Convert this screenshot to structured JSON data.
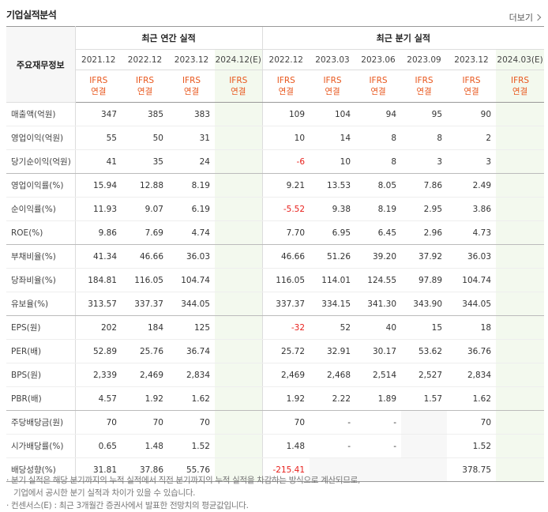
{
  "section_title": "기업실적분석",
  "more_label": "더보기",
  "row_header_label": "주요재무정보",
  "group_annual": "최근 연간 실적",
  "group_quarter": "최근 분기 실적",
  "annual_periods": [
    "2021.12",
    "2022.12",
    "2023.12",
    "2024.12(E)"
  ],
  "quarter_periods": [
    "2022.12",
    "2023.03",
    "2023.06",
    "2023.09",
    "2023.12",
    "2024.03(E)"
  ],
  "basis_top": "IFRS",
  "basis_bottom": "연결",
  "rows": [
    {
      "label": "매출액(억원)",
      "annual": [
        "347",
        "385",
        "383",
        ""
      ],
      "quarter": [
        "109",
        "104",
        "94",
        "95",
        "90",
        ""
      ]
    },
    {
      "label": "영업이익(억원)",
      "annual": [
        "55",
        "50",
        "31",
        ""
      ],
      "quarter": [
        "10",
        "14",
        "8",
        "8",
        "2",
        ""
      ]
    },
    {
      "label": "당기순이익(억원)",
      "annual": [
        "41",
        "35",
        "24",
        ""
      ],
      "quarter": [
        "-6",
        "10",
        "8",
        "3",
        "3",
        ""
      ]
    },
    {
      "label": "영업이익률(%)",
      "annual": [
        "15.94",
        "12.88",
        "8.19",
        ""
      ],
      "quarter": [
        "9.21",
        "13.53",
        "8.05",
        "7.86",
        "2.49",
        ""
      ]
    },
    {
      "label": "순이익률(%)",
      "annual": [
        "11.93",
        "9.07",
        "6.19",
        ""
      ],
      "quarter": [
        "-5.52",
        "9.38",
        "8.19",
        "2.95",
        "3.86",
        ""
      ]
    },
    {
      "label": "ROE(%)",
      "annual": [
        "9.86",
        "7.69",
        "4.74",
        ""
      ],
      "quarter": [
        "7.70",
        "6.95",
        "6.45",
        "2.96",
        "4.73",
        ""
      ]
    },
    {
      "label": "부채비율(%)",
      "annual": [
        "41.34",
        "46.66",
        "36.03",
        ""
      ],
      "quarter": [
        "46.66",
        "51.26",
        "39.20",
        "37.92",
        "36.03",
        ""
      ]
    },
    {
      "label": "당좌비율(%)",
      "annual": [
        "184.81",
        "116.05",
        "104.74",
        ""
      ],
      "quarter": [
        "116.05",
        "114.01",
        "124.55",
        "97.89",
        "104.74",
        ""
      ]
    },
    {
      "label": "유보율(%)",
      "annual": [
        "313.57",
        "337.37",
        "344.05",
        ""
      ],
      "quarter": [
        "337.37",
        "334.15",
        "341.30",
        "343.90",
        "344.05",
        ""
      ]
    },
    {
      "label": "EPS(원)",
      "annual": [
        "202",
        "184",
        "125",
        ""
      ],
      "quarter": [
        "-32",
        "52",
        "40",
        "15",
        "18",
        ""
      ]
    },
    {
      "label": "PER(배)",
      "annual": [
        "52.89",
        "25.76",
        "36.74",
        ""
      ],
      "quarter": [
        "25.72",
        "32.91",
        "30.17",
        "53.62",
        "36.76",
        ""
      ]
    },
    {
      "label": "BPS(원)",
      "annual": [
        "2,339",
        "2,469",
        "2,834",
        ""
      ],
      "quarter": [
        "2,469",
        "2,468",
        "2,514",
        "2,527",
        "2,834",
        ""
      ]
    },
    {
      "label": "PBR(배)",
      "annual": [
        "4.57",
        "1.92",
        "1.62",
        ""
      ],
      "quarter": [
        "1.92",
        "2.22",
        "1.89",
        "1.57",
        "1.62",
        ""
      ]
    },
    {
      "label": "주당배당금(원)",
      "annual": [
        "70",
        "70",
        "70",
        ""
      ],
      "quarter": [
        "70",
        "-",
        "-",
        "",
        "70",
        ""
      ]
    },
    {
      "label": "시가배당률(%)",
      "annual": [
        "0.65",
        "1.48",
        "1.52",
        ""
      ],
      "quarter": [
        "1.48",
        "-",
        "-",
        "",
        "1.52",
        ""
      ]
    },
    {
      "label": "배당성향(%)",
      "annual": [
        "31.81",
        "37.86",
        "55.76",
        ""
      ],
      "quarter": [
        "-215.41",
        "",
        "",
        "",
        "378.75",
        ""
      ]
    }
  ],
  "notes": [
    "분기 실적은 해당 분기까지의 누적 실적에서 직전 분기까지의 누적 실적을 차감하는 방식으로 계산되므로,",
    "기업에서 공시한 분기 실적과 차이가 있을 수 있습니다.",
    "컨센서스(E) : 최근 3개월간 증권사에서 발표한 전망치의 평균값입니다."
  ],
  "colors": {
    "accent": "#e8561c",
    "negative": "#e8201c",
    "estimate_bg": "#f3f9ee"
  }
}
